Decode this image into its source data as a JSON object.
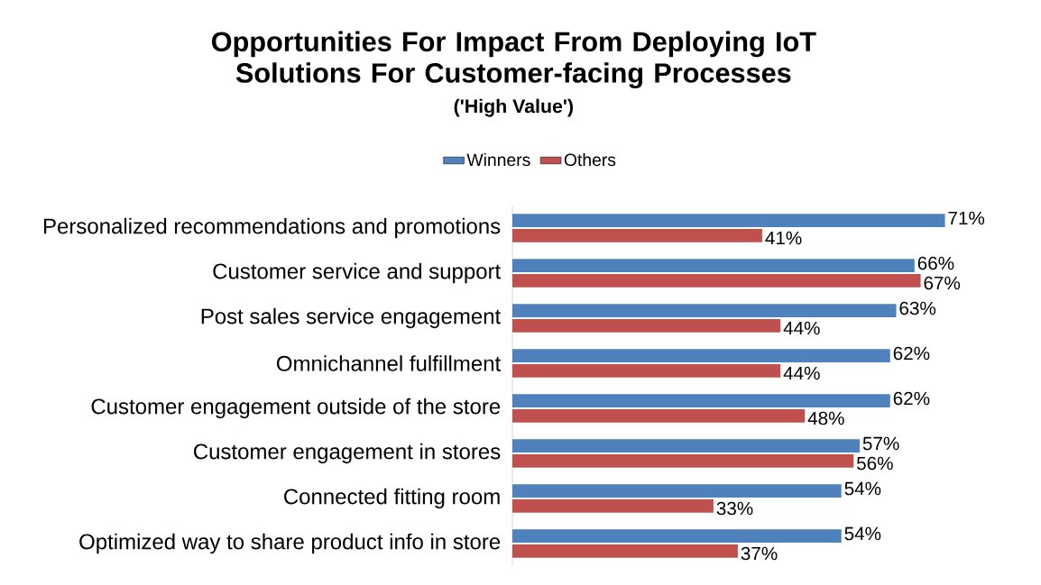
{
  "chart_data": {
    "type": "bar",
    "orientation": "horizontal",
    "title": "Opportunities For Impact From Deploying IoT Solutions For Customer-facing Processes",
    "subtitle": "('High Value')",
    "categories": [
      "Personalized recommendations and promotions",
      "Customer service and support",
      "Post sales service engagement",
      "Omnichannel  fulfillment",
      "Customer engagement outside of the store",
      "Customer engagement in stores",
      "Connected fitting room",
      "Optimized way to share product info in store"
    ],
    "series": [
      {
        "name": "Winners",
        "color": "#4f81bd",
        "values": [
          71,
          66,
          63,
          62,
          62,
          57,
          54,
          54
        ],
        "value_labels": [
          "71%",
          "66%",
          "63%",
          "62%",
          "62%",
          "57%",
          "54%",
          "54%"
        ]
      },
      {
        "name": "Others",
        "color": "#c0504d",
        "values": [
          41,
          67,
          44,
          44,
          48,
          56,
          33,
          37
        ],
        "value_labels": [
          "41%",
          "67%",
          "44%",
          "44%",
          "48%",
          "56%",
          "33%",
          "37%"
        ]
      }
    ],
    "legend": "top"
  }
}
